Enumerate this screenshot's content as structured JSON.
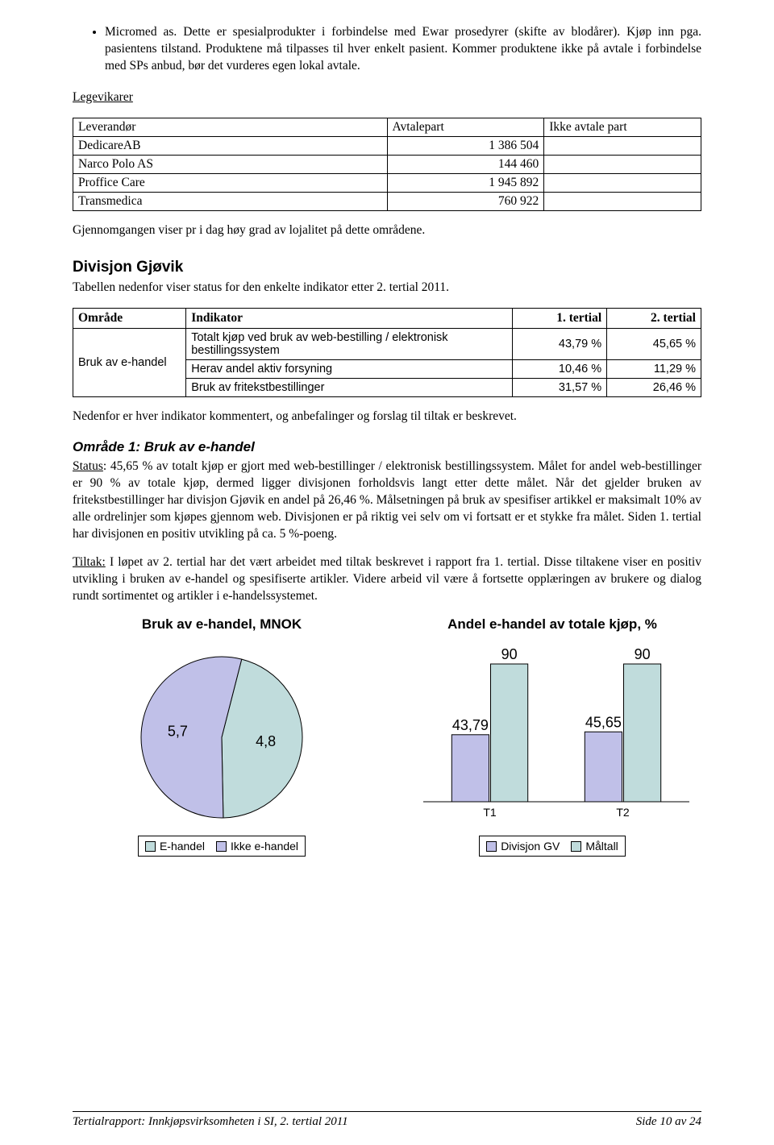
{
  "bullet1": "Micromed as. Dette er spesialprodukter i forbindelse med Ewar prosedyrer (skifte av blodårer). Kjøp inn pga. pasientens tilstand. Produktene må tilpasses til hver enkelt pasient. Kommer produktene ikke på avtale i forbindelse med SPs anbud, bør det vurderes egen lokal avtale.",
  "section_legevikarer": "Legevikarer",
  "tbl1": {
    "headers": [
      "Leverandør",
      "Avtalepart",
      "Ikke avtale part"
    ],
    "rows": [
      [
        "DedicareAB",
        "1 386 504",
        ""
      ],
      [
        "Narco Polo AS",
        "144 460",
        ""
      ],
      [
        "Proffice Care",
        "1 945 892",
        ""
      ],
      [
        "Transmedica",
        "760 922",
        ""
      ]
    ]
  },
  "para_gjennom": "Gjennomgangen viser pr i dag høy grad av lojalitet på dette områdene.",
  "h2_divisjon": "Divisjon Gjøvik",
  "para_tabellen": "Tabellen nedenfor viser status for den enkelte indikator etter 2. tertial 2011.",
  "ind": {
    "head": [
      "Område",
      "Indikator",
      "1. tertial",
      "2. tertial"
    ],
    "area": "Bruk av e-handel",
    "rows": [
      [
        "Totalt kjøp ved bruk av web-bestilling / elektronisk bestillingssystem",
        "43,79 %",
        "45,65 %"
      ],
      [
        "Herav andel aktiv forsyning",
        "10,46 %",
        "11,29 %"
      ],
      [
        "Bruk av fritekstbestillinger",
        "31,57 %",
        "26,46 %"
      ]
    ]
  },
  "para_nedenfor": "Nedenfor er hver indikator kommentert, og anbefalinger og forslag til tiltak er beskrevet.",
  "h3_omrade1": "Område 1: Bruk av e-handel",
  "status_label": "Status",
  "para_status": ": 45,65 % av totalt kjøp er gjort med web-bestillinger / elektronisk bestillingssystem. Målet for andel web-bestillinger er 90 % av totale kjøp, dermed ligger divisjonen forholdsvis langt etter dette målet. Når det gjelder bruken av fritekstbestillinger har divisjon Gjøvik en andel på 26,46 %. Målsetningen på bruk av spesifiser artikkel er maksimalt 10% av alle ordrelinjer som kjøpes gjennom web. Divisjonen er på riktig vei selv om vi fortsatt er et stykke fra målet. Siden 1. tertial har divisjonen en positiv utvikling på ca. 5 %-poeng.",
  "tiltak_label": "Tiltak:",
  "para_tiltak": " I løpet av 2. tertial har det vært arbeidet med tiltak beskrevet i rapport fra 1. tertial. Disse tiltakene viser en positiv utvikling i bruken av e-handel og spesifiserte artikler. Videre arbeid vil være å fortsette opplæringen av brukere og dialog rundt sortimentet og artikler i e-handelssystemet.",
  "pie": {
    "title": "Bruk av e-handel, MNOK",
    "slices": [
      {
        "label": "E-handel",
        "value": 4.8,
        "text": "4,8",
        "color": "#c0dcdc"
      },
      {
        "label": "Ikke e-handel",
        "value": 5.7,
        "text": "5,7",
        "color": "#c0c0e8"
      }
    ],
    "border": "#000000",
    "label_fontsize": 18,
    "legend": [
      "E-handel",
      "Ikke e-handel"
    ]
  },
  "bar": {
    "title": "Andel e-handel av totale kjøp, %",
    "categories": [
      "T1",
      "T2"
    ],
    "series": [
      {
        "name": "Divisjon GV",
        "color": "#c0c0e8",
        "values": [
          43.79,
          45.65
        ],
        "labels": [
          "43,79",
          "45,65"
        ]
      },
      {
        "name": "Måltall",
        "color": "#c0dcdc",
        "values": [
          90,
          90
        ],
        "labels": [
          "90",
          "90"
        ]
      }
    ],
    "ymax": 100,
    "label_fontsize": 18,
    "axis_fontsize": 14,
    "border": "#000000"
  },
  "footer_left": "Tertialrapport: Innkjøpsvirksomheten i SI, 2. tertial 2011",
  "footer_right_prefix": "Side ",
  "footer_page": "10",
  "footer_right_suffix": " av 24"
}
